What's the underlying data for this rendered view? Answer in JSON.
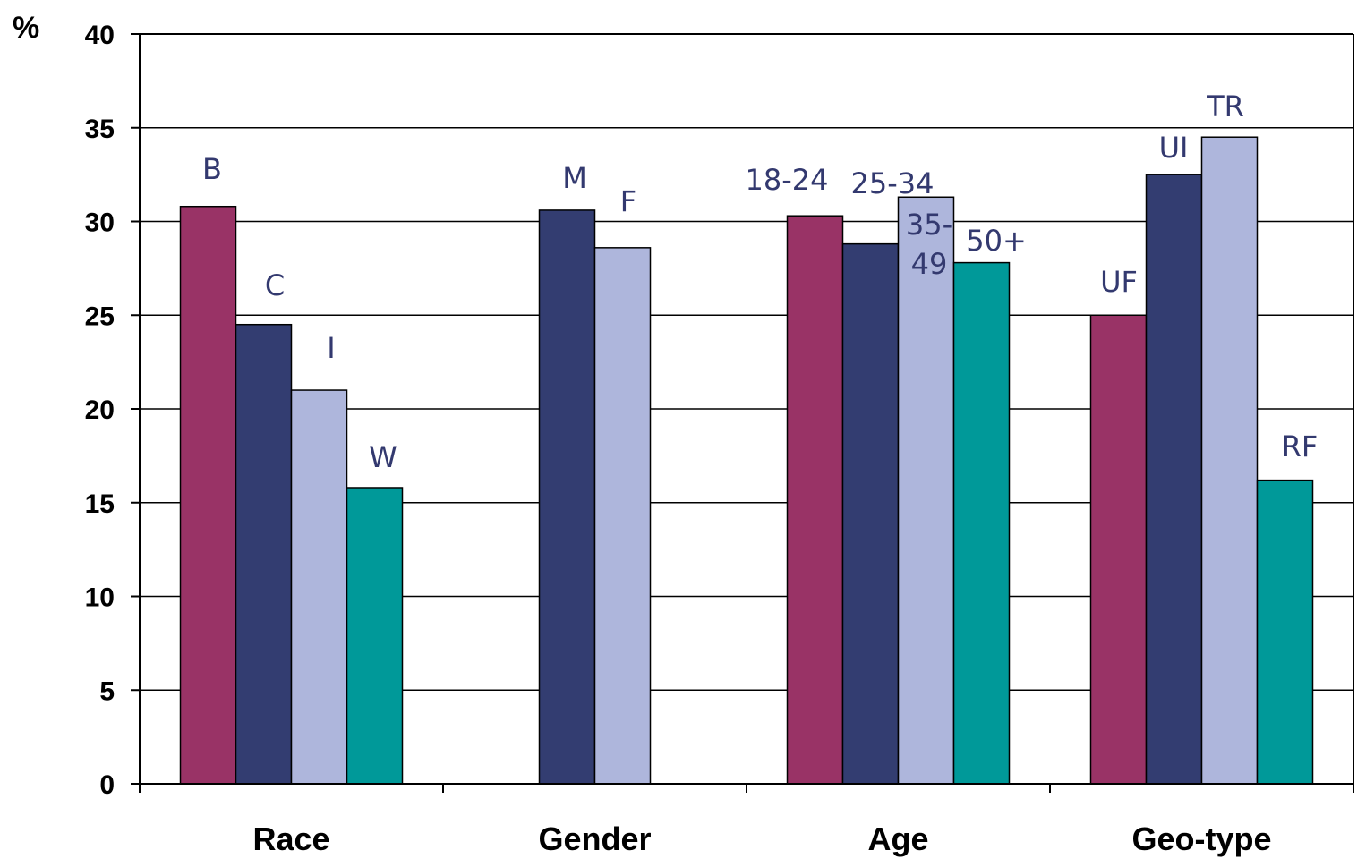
{
  "chart_data": {
    "type": "bar",
    "y_unit_label": "%",
    "ylim": [
      0,
      40
    ],
    "y_ticks": [
      0,
      5,
      10,
      15,
      20,
      25,
      30,
      35,
      40
    ],
    "grid": true,
    "legend": "none",
    "colors": {
      "maroon": "#993366",
      "navy": "#333d71",
      "lavender": "#aeb6dc",
      "teal": "#009999"
    },
    "groups": [
      {
        "name": "Race",
        "bars": [
          {
            "label": "B",
            "value": 30.8,
            "color": "maroon"
          },
          {
            "label": "C",
            "value": 24.5,
            "color": "navy"
          },
          {
            "label": "I",
            "value": 21.0,
            "color": "lavender"
          },
          {
            "label": "W",
            "value": 15.8,
            "color": "teal"
          }
        ]
      },
      {
        "name": "Gender",
        "bars": [
          {
            "label": "M",
            "value": 30.6,
            "color": "navy"
          },
          {
            "label": "F",
            "value": 28.6,
            "color": "lavender"
          }
        ]
      },
      {
        "name": "Age",
        "bars": [
          {
            "label": "18-24",
            "value": 30.3,
            "color": "maroon"
          },
          {
            "label": "25-34",
            "value": 28.8,
            "color": "navy"
          },
          {
            "label": "35-49",
            "value": 31.3,
            "color": "lavender"
          },
          {
            "label": "50+",
            "value": 27.8,
            "color": "teal"
          }
        ]
      },
      {
        "name": "Geo-type",
        "bars": [
          {
            "label": "UF",
            "value": 25.0,
            "color": "maroon"
          },
          {
            "label": "UI",
            "value": 32.5,
            "color": "navy"
          },
          {
            "label": "TR",
            "value": 34.5,
            "color": "lavender"
          },
          {
            "label": "RF",
            "value": 16.2,
            "color": "teal"
          }
        ]
      }
    ]
  }
}
